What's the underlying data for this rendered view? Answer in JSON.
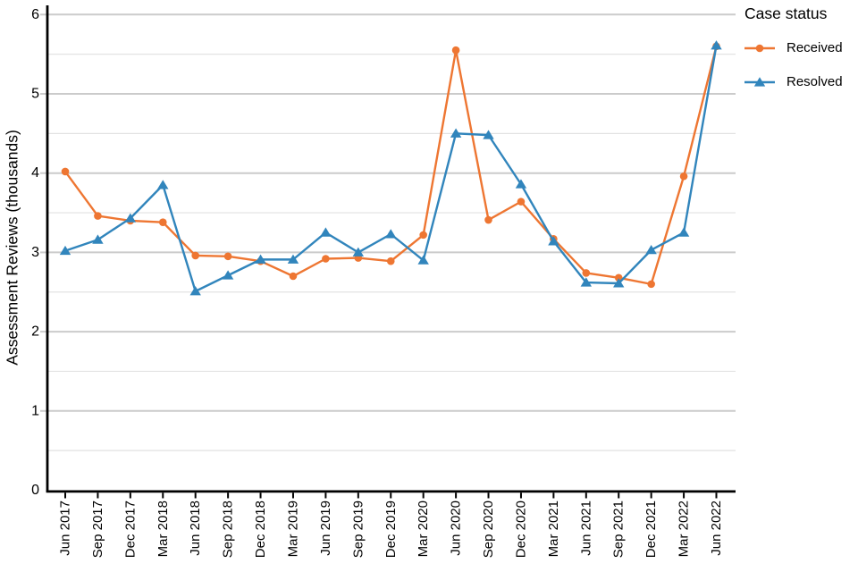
{
  "chart_data": {
    "type": "line",
    "title": "",
    "xlabel": "",
    "ylabel": "Assessment Reviews (thousands)",
    "ylim": [
      0,
      6
    ],
    "yticks": [
      0,
      1,
      2,
      3,
      4,
      5,
      6
    ],
    "minor_grid_step": 0.5,
    "grid": "horizontal major+minor",
    "legend_title": "Case status",
    "legend_position": "right-top",
    "categories": [
      "Jun 2017",
      "Sep 2017",
      "Dec 2017",
      "Mar 2018",
      "Jun 2018",
      "Sep 2018",
      "Dec 2018",
      "Mar 2019",
      "Jun 2019",
      "Sep 2019",
      "Dec 2019",
      "Mar 2020",
      "Jun 2020",
      "Sep 2020",
      "Dec 2020",
      "Mar 2021",
      "Jun 2021",
      "Sep 2021",
      "Dec 2021",
      "Mar 2022",
      "Jun 2022"
    ],
    "series": [
      {
        "name": "Received",
        "marker": "circle",
        "color": "#EE7632",
        "values": [
          4.02,
          3.46,
          3.4,
          3.38,
          2.96,
          2.95,
          2.89,
          2.7,
          2.92,
          2.93,
          2.89,
          3.22,
          5.55,
          3.41,
          3.64,
          3.17,
          2.74,
          2.68,
          2.6,
          3.96,
          5.6
        ]
      },
      {
        "name": "Resolved",
        "marker": "triangle-up",
        "color": "#3185BC",
        "values": [
          3.02,
          3.16,
          3.43,
          3.85,
          2.51,
          2.71,
          2.91,
          2.91,
          3.25,
          3.0,
          3.23,
          2.9,
          4.5,
          4.48,
          3.86,
          3.14,
          2.62,
          2.61,
          3.03,
          3.25,
          5.61
        ]
      }
    ],
    "colors": {
      "axis": "#000000",
      "text": "#000000",
      "grid_major": "#CBCBCB",
      "grid_minor": "#E2E2E2",
      "background": "#FFFFFF"
    }
  }
}
